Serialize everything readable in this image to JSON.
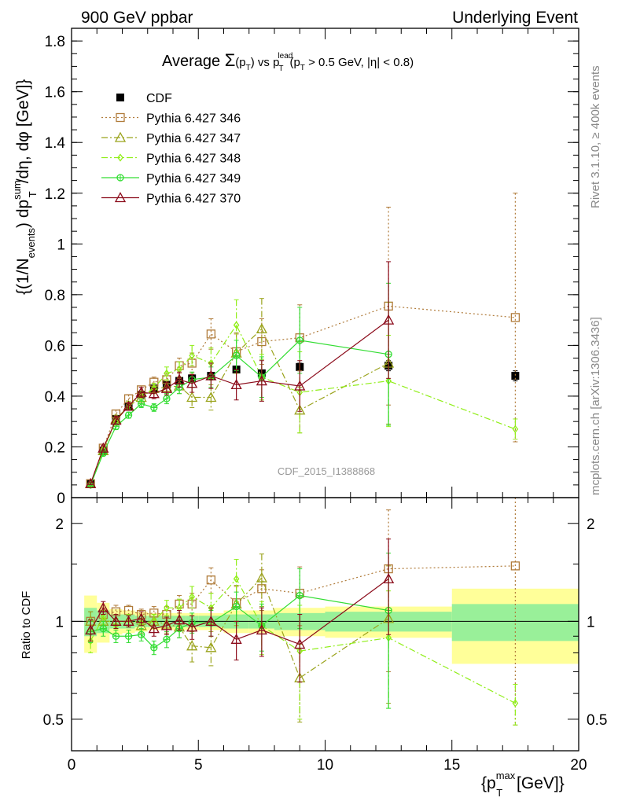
{
  "header": {
    "left": "900 GeV ppbar",
    "right": "Underlying Event"
  },
  "side_labels": {
    "rivet": "Rivet 3.1.10, ≥ 400k events",
    "mcplots": "mcplots.cern.ch [arXiv:1306.3436]"
  },
  "watermark": "CDF_2015_I1388868",
  "colors": {
    "cdf": "#000000",
    "p346": "#b07b3a",
    "p347": "#9aa31c",
    "p348": "#90ee18",
    "p349": "#33dd33",
    "p370": "#8b0a1a",
    "band_inner": "#99f099",
    "band_outer": "#ffff99"
  },
  "chart_data": [
    {
      "type": "scatter",
      "panel": "main",
      "title_parts": {
        "prefix": "Average ",
        "sigma": "Σ",
        "p_T_a": "(p",
        "T_sub": "T",
        "vs": ") vs p",
        "lead": "lead",
        "T2": "T",
        "cut": "(p",
        "T3": "T",
        "rest": " > 0.5 GeV, |η| < 0.8)"
      },
      "ylabel_parts": {
        "a": "{(1/N",
        "events_sub": "events",
        "b": ") dp",
        "sum_sup": "sum",
        "T_sub": "T",
        "c": "/dη, dφ [GeV]}"
      },
      "xlabel_parts": {
        "a": "{p",
        "max_sup": "max",
        "T_sub": "T",
        "b": " [GeV]}"
      },
      "xlim": [
        0,
        20
      ],
      "ylim": [
        0,
        1.85
      ],
      "y_ticks": [
        "0",
        "0.2",
        "0.4",
        "0.6",
        "0.8",
        "1",
        "1.2",
        "1.4",
        "1.6",
        "1.8"
      ],
      "y_tick_values": [
        0,
        0.2,
        0.4,
        0.6,
        0.8,
        1.0,
        1.2,
        1.4,
        1.6,
        1.8
      ],
      "legend": [
        "CDF",
        "Pythia 6.427 346",
        "Pythia 6.427 347",
        "Pythia 6.427 348",
        "Pythia 6.427 349",
        "Pythia 6.427 370"
      ],
      "series": [
        {
          "name": "CDF",
          "key": "cdf",
          "marker": "square-filled",
          "line": "none",
          "x": [
            0.75,
            1.25,
            1.75,
            2.25,
            2.75,
            3.25,
            3.75,
            4.25,
            4.75,
            5.5,
            6.5,
            7.5,
            9.0,
            12.5,
            17.5
          ],
          "y": [
            0.055,
            0.185,
            0.31,
            0.36,
            0.405,
            0.43,
            0.445,
            0.46,
            0.47,
            0.48,
            0.505,
            0.49,
            0.515,
            0.52,
            0.48
          ],
          "err": [
            0.005,
            0.01,
            0.01,
            0.01,
            0.01,
            0.01,
            0.01,
            0.01,
            0.01,
            0.01,
            0.01,
            0.01,
            0.015,
            0.02,
            0.02
          ]
        },
        {
          "name": "Pythia 6.427 346",
          "key": "p346",
          "marker": "square-open",
          "line": "dotted",
          "x": [
            0.75,
            1.25,
            1.75,
            2.25,
            2.75,
            3.25,
            3.75,
            4.25,
            4.75,
            5.5,
            6.5,
            7.5,
            9.0,
            12.5,
            17.5
          ],
          "y": [
            0.055,
            0.195,
            0.33,
            0.39,
            0.425,
            0.455,
            0.465,
            0.52,
            0.53,
            0.645,
            0.575,
            0.615,
            0.63,
            0.755,
            0.71
          ],
          "err": [
            0.004,
            0.01,
            0.015,
            0.015,
            0.015,
            0.02,
            0.025,
            0.03,
            0.04,
            0.06,
            0.07,
            0.09,
            0.13,
            0.39,
            0.49
          ]
        },
        {
          "name": "Pythia 6.427 347",
          "key": "p347",
          "marker": "triangle-open",
          "line": "dashdot",
          "x": [
            0.75,
            1.25,
            1.75,
            2.25,
            2.75,
            3.25,
            3.75,
            4.25,
            4.75,
            5.5,
            6.5,
            7.5,
            9.0,
            12.5
          ],
          "y": [
            0.055,
            0.185,
            0.31,
            0.36,
            0.395,
            0.43,
            0.435,
            0.44,
            0.395,
            0.395,
            0.57,
            0.665,
            0.345,
            0.53
          ],
          "err": [
            0.004,
            0.01,
            0.015,
            0.015,
            0.02,
            0.02,
            0.025,
            0.03,
            0.04,
            0.05,
            0.08,
            0.12,
            0.09,
            0.24
          ]
        },
        {
          "name": "Pythia 6.427 348",
          "key": "p348",
          "marker": "diamond-open",
          "line": "dashdot",
          "x": [
            0.75,
            1.25,
            1.75,
            2.25,
            2.75,
            3.25,
            3.75,
            4.25,
            4.75,
            5.5,
            6.5,
            7.5,
            9.0,
            12.5,
            17.5
          ],
          "y": [
            0.05,
            0.19,
            0.3,
            0.365,
            0.4,
            0.43,
            0.49,
            0.505,
            0.56,
            0.53,
            0.68,
            0.475,
            0.415,
            0.46,
            0.27
          ],
          "err": [
            0.004,
            0.01,
            0.015,
            0.015,
            0.02,
            0.02,
            0.025,
            0.03,
            0.04,
            0.06,
            0.1,
            0.09,
            0.16,
            0.18,
            0.04
          ]
        },
        {
          "name": "Pythia 6.427 349",
          "key": "p349",
          "marker": "circle-cross",
          "line": "solid",
          "x": [
            0.75,
            1.25,
            1.75,
            2.25,
            2.75,
            3.25,
            3.75,
            4.25,
            4.75,
            5.5,
            6.5,
            7.5,
            9.0,
            12.5
          ],
          "y": [
            0.05,
            0.175,
            0.28,
            0.325,
            0.37,
            0.355,
            0.39,
            0.435,
            0.465,
            0.475,
            0.56,
            0.475,
            0.62,
            0.565
          ],
          "err": [
            0.004,
            0.01,
            0.012,
            0.012,
            0.015,
            0.015,
            0.02,
            0.025,
            0.03,
            0.04,
            0.06,
            0.08,
            0.13,
            0.28
          ]
        },
        {
          "name": "Pythia 6.427 370",
          "key": "p370",
          "marker": "triangle-open",
          "line": "solid",
          "x": [
            0.75,
            1.25,
            1.75,
            2.25,
            2.75,
            3.25,
            3.75,
            4.25,
            4.75,
            5.5,
            6.5,
            7.5,
            9.0,
            12.5
          ],
          "y": [
            0.055,
            0.195,
            0.305,
            0.36,
            0.415,
            0.41,
            0.43,
            0.465,
            0.45,
            0.48,
            0.445,
            0.46,
            0.44,
            0.7
          ],
          "err": [
            0.004,
            0.01,
            0.015,
            0.015,
            0.02,
            0.02,
            0.025,
            0.03,
            0.035,
            0.05,
            0.06,
            0.08,
            0.1,
            0.23
          ]
        }
      ]
    },
    {
      "type": "scatter",
      "panel": "ratio",
      "ylabel": "Ratio to CDF",
      "xlim": [
        0,
        20
      ],
      "ylim": [
        0.4,
        2.4
      ],
      "log_y": true,
      "y_ticks": [
        "0.5",
        "1",
        "2"
      ],
      "y_tick_values": [
        0.5,
        1,
        2
      ],
      "x_ticks": [
        "0",
        "5",
        "10",
        "15",
        "20"
      ],
      "x_tick_values": [
        0,
        5,
        10,
        15,
        20
      ],
      "bands": {
        "edges": [
          0.5,
          1.0,
          1.5,
          2.0,
          2.5,
          3.0,
          3.5,
          4.0,
          4.5,
          5.0,
          6.0,
          7.0,
          8.0,
          10.0,
          15.0,
          20.0
        ],
        "inner": [
          0.1,
          0.08,
          0.05,
          0.05,
          0.04,
          0.04,
          0.04,
          0.04,
          0.04,
          0.04,
          0.05,
          0.05,
          0.06,
          0.07,
          0.13
        ],
        "outer": [
          0.2,
          0.14,
          0.09,
          0.08,
          0.07,
          0.06,
          0.06,
          0.06,
          0.06,
          0.06,
          0.08,
          0.08,
          0.1,
          0.11,
          0.26
        ]
      },
      "series": [
        {
          "name": "Pythia 6.427 346",
          "key": "p346",
          "x": [
            0.75,
            1.25,
            1.75,
            2.25,
            2.75,
            3.25,
            3.75,
            4.25,
            4.75,
            5.5,
            6.5,
            7.5,
            9.0,
            12.5,
            17.5
          ],
          "y": [
            1.0,
            1.05,
            1.07,
            1.08,
            1.05,
            1.06,
            1.05,
            1.13,
            1.13,
            1.34,
            1.14,
            1.26,
            1.22,
            1.45,
            1.48
          ],
          "err": [
            0.07,
            0.05,
            0.05,
            0.04,
            0.04,
            0.05,
            0.06,
            0.07,
            0.09,
            0.12,
            0.14,
            0.18,
            0.25,
            0.75,
            1.0
          ]
        },
        {
          "name": "Pythia 6.427 347",
          "key": "p347",
          "x": [
            0.75,
            1.25,
            1.75,
            2.25,
            2.75,
            3.25,
            3.75,
            4.25,
            4.75,
            5.5,
            6.5,
            7.5,
            9.0,
            12.5
          ],
          "y": [
            1.0,
            1.0,
            1.0,
            1.0,
            0.97,
            1.0,
            0.98,
            0.96,
            0.84,
            0.83,
            1.13,
            1.36,
            0.67,
            1.02
          ],
          "err": [
            0.07,
            0.05,
            0.05,
            0.04,
            0.05,
            0.05,
            0.06,
            0.07,
            0.09,
            0.1,
            0.16,
            0.25,
            0.18,
            0.46
          ]
        },
        {
          "name": "Pythia 6.427 348",
          "key": "p348",
          "x": [
            0.75,
            1.25,
            1.75,
            2.25,
            2.75,
            3.25,
            3.75,
            4.25,
            4.75,
            5.5,
            6.5,
            7.5,
            9.0,
            12.5,
            17.5
          ],
          "y": [
            0.87,
            1.03,
            0.97,
            1.01,
            0.99,
            1.0,
            1.1,
            1.1,
            1.19,
            1.1,
            1.35,
            0.97,
            0.81,
            0.89,
            0.56
          ],
          "err": [
            0.07,
            0.05,
            0.05,
            0.04,
            0.05,
            0.05,
            0.06,
            0.07,
            0.09,
            0.12,
            0.2,
            0.18,
            0.31,
            0.35,
            0.08
          ]
        },
        {
          "name": "Pythia 6.427 349",
          "key": "p349",
          "x": [
            0.75,
            1.25,
            1.75,
            2.25,
            2.75,
            3.25,
            3.75,
            4.25,
            4.75,
            5.5,
            6.5,
            7.5,
            9.0,
            12.5
          ],
          "y": [
            0.93,
            0.95,
            0.9,
            0.9,
            0.91,
            0.83,
            0.88,
            0.95,
            0.99,
            0.99,
            1.11,
            0.97,
            1.2,
            1.08
          ],
          "err": [
            0.07,
            0.05,
            0.04,
            0.04,
            0.04,
            0.04,
            0.05,
            0.06,
            0.07,
            0.09,
            0.12,
            0.16,
            0.25,
            0.54
          ]
        },
        {
          "name": "Pythia 6.427 370",
          "key": "p370",
          "x": [
            0.75,
            1.25,
            1.75,
            2.25,
            2.75,
            3.25,
            3.75,
            4.25,
            4.75,
            5.5,
            6.5,
            7.5,
            9.0,
            12.5
          ],
          "y": [
            0.94,
            1.1,
            1.0,
            1.0,
            1.02,
            0.95,
            0.97,
            1.01,
            0.96,
            1.0,
            0.88,
            0.94,
            0.85,
            1.35
          ],
          "err": [
            0.07,
            0.05,
            0.05,
            0.04,
            0.05,
            0.05,
            0.06,
            0.07,
            0.08,
            0.1,
            0.12,
            0.16,
            0.2,
            0.44
          ]
        }
      ]
    }
  ]
}
